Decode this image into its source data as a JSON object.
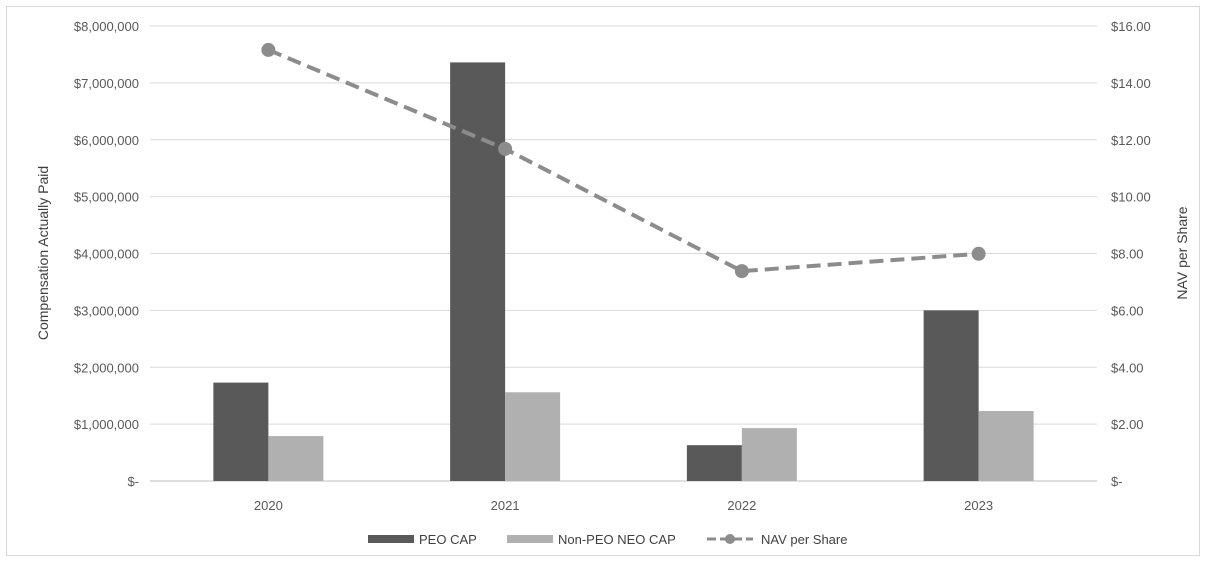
{
  "chart_data": {
    "type": "bar",
    "categories": [
      "2020",
      "2021",
      "2022",
      "2023"
    ],
    "series": [
      {
        "name": "PEO CAP",
        "kind": "bar",
        "axis": "left",
        "color": "#595959",
        "values": [
          1730000,
          7360000,
          630000,
          3000000
        ]
      },
      {
        "name": "Non-PEO NEO CAP",
        "kind": "bar",
        "axis": "left",
        "color": "#b0b0b0",
        "values": [
          790000,
          1560000,
          930000,
          1230000
        ]
      },
      {
        "name": "NAV per Share",
        "kind": "line",
        "style": "dashed-with-markers",
        "axis": "right",
        "color": "#8c8c8c",
        "values": [
          15.16,
          11.68,
          7.38,
          7.99
        ]
      }
    ],
    "ylabel": "Compensation Actually Paid",
    "y2label": "NAV per Share",
    "ylim": [
      0,
      8000000
    ],
    "y2lim": [
      0,
      16
    ],
    "yticks": [
      "$-",
      "$1,000,000",
      "$2,000,000",
      "$3,000,000",
      "$4,000,000",
      "$5,000,000",
      "$6,000,000",
      "$7,000,000",
      "$8,000,000"
    ],
    "y2ticks": [
      "$-",
      "$2.00",
      "$4.00",
      "$6.00",
      "$8.00",
      "$10.00",
      "$12.00",
      "$14.00",
      "$16.00"
    ],
    "grid": true,
    "legend_position": "bottom"
  }
}
